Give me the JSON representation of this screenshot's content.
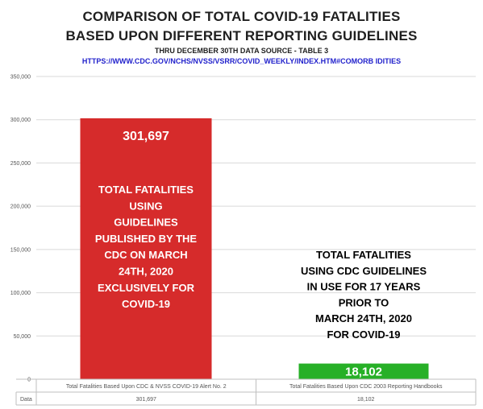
{
  "chart_data": {
    "type": "bar",
    "title": "COMPARISON OF TOTAL COVID-19 FATALITIES",
    "title_line2": "BASED UPON DIFFERENT REPORTING GUIDELINES",
    "subtitle": "THRU DECEMBER 30TH DATA SOURCE  - TABLE 3",
    "source_url": "HTTPS://WWW.CDC.GOV/NCHS/NVSS/VSRR/COVID_WEEKLY/INDEX.HTM#COMORB IDITIES",
    "categories": [
      "Total Fatalities Based Upon CDC & NVSS COVID-19 Alert No. 2",
      "Total Fatalities Based Upon CDC 2003 Reporting Handbooks"
    ],
    "values": [
      301697,
      18102
    ],
    "value_labels": [
      "301,697",
      "18,102"
    ],
    "colors": [
      "#d62b2b",
      "#27b027"
    ],
    "ylim": [
      0,
      350000
    ],
    "yticks": [
      "0",
      "50,000",
      "100,000",
      "150,000",
      "200,000",
      "250,000",
      "300,000",
      "350,000"
    ],
    "grid": true,
    "data_table": {
      "row_label": "Data",
      "cells": [
        "301,697",
        "18,102"
      ]
    },
    "annotations": [
      {
        "lines": [
          "TOTAL FATALITIES",
          "USING",
          "GUIDELINES",
          "PUBLISHED BY THE",
          "CDC ON MARCH",
          "24TH, 2020",
          "EXCLUSIVELY FOR",
          "COVID-19"
        ],
        "color": "#ffffff"
      },
      {
        "lines": [
          "TOTAL FATALITIES",
          "USING CDC GUIDELINES",
          "IN USE FOR 17 YEARS",
          "PRIOR TO",
          "MARCH 24TH, 2020",
          "FOR COVID-19"
        ],
        "color": "#000000"
      }
    ]
  }
}
